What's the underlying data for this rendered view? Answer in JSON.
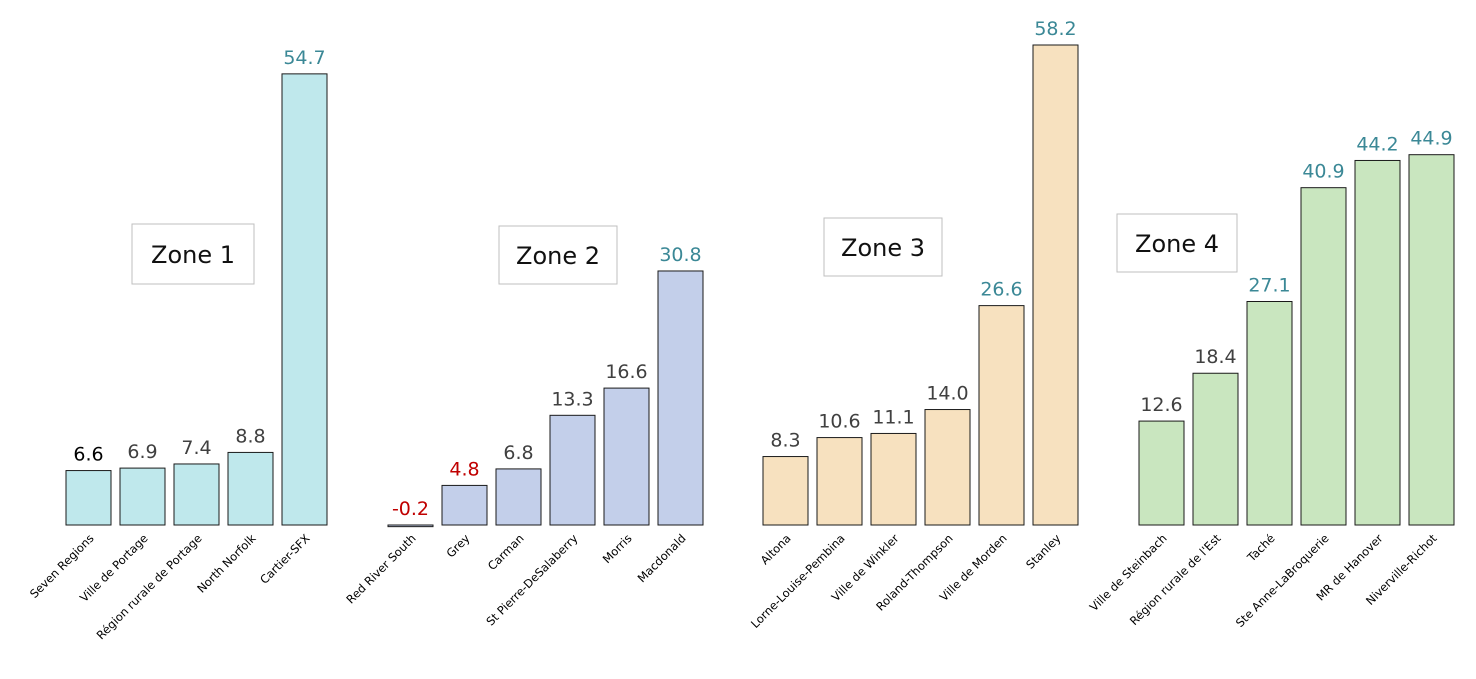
{
  "chart_data": {
    "type": "bar",
    "title": "",
    "xlabel": "",
    "ylabel": "",
    "ylim": [
      -1,
      60
    ],
    "grid": false,
    "legend": "none",
    "colors": {
      "zone1": "#bfe8ec",
      "zone2": "#c3cfea",
      "zone3": "#f7e1bf",
      "zone4": "#c9e6bf",
      "label_default": "#404040",
      "label_first": "#000000",
      "label_high": "#3b8896",
      "label_negative": "#c00000"
    },
    "zones": [
      {
        "name": "Zone 1",
        "bars": [
          {
            "category": "Seven Regions",
            "value": 6.6,
            "label": "6.6",
            "label_style": "first"
          },
          {
            "category": "Ville de Portage",
            "value": 6.9,
            "label": "6.9",
            "label_style": "default"
          },
          {
            "category": "Région rurale de Portage",
            "value": 7.4,
            "label": "7.4",
            "label_style": "default"
          },
          {
            "category": "North Norfolk",
            "value": 8.8,
            "label": "8.8",
            "label_style": "default"
          },
          {
            "category": "Cartier-SFX",
            "value": 54.7,
            "label": "54.7",
            "label_style": "high"
          }
        ]
      },
      {
        "name": "Zone 2",
        "bars": [
          {
            "category": "Red River South",
            "value": -0.2,
            "label": "-0.2",
            "label_style": "negative"
          },
          {
            "category": "Grey",
            "value": 4.8,
            "label": "4.8",
            "label_style": "negative"
          },
          {
            "category": "Carman",
            "value": 6.8,
            "label": "6.8",
            "label_style": "default"
          },
          {
            "category": "St Pierre-DeSalaberry",
            "value": 13.3,
            "label": "13.3",
            "label_style": "default"
          },
          {
            "category": "Morris",
            "value": 16.6,
            "label": "16.6",
            "label_style": "default"
          },
          {
            "category": "Macdonald",
            "value": 30.8,
            "label": "30.8",
            "label_style": "high"
          }
        ]
      },
      {
        "name": "Zone 3",
        "bars": [
          {
            "category": "Altona",
            "value": 8.3,
            "label": "8.3",
            "label_style": "default"
          },
          {
            "category": "Lorne-Louise-Pembina",
            "value": 10.6,
            "label": "10.6",
            "label_style": "default"
          },
          {
            "category": "Ville de Winkler",
            "value": 11.1,
            "label": "11.1",
            "label_style": "default"
          },
          {
            "category": "Roland-Thompson",
            "value": 14.0,
            "label": "14.0",
            "label_style": "default"
          },
          {
            "category": "Ville de Morden",
            "value": 26.6,
            "label": "26.6",
            "label_style": "high"
          },
          {
            "category": "Stanley",
            "value": 58.2,
            "label": "58.2",
            "label_style": "high"
          }
        ]
      },
      {
        "name": "Zone 4",
        "bars": [
          {
            "category": "Ville de Steinbach",
            "value": 12.6,
            "label": "12.6",
            "label_style": "default"
          },
          {
            "category": "Région rurale de l'Est",
            "value": 18.4,
            "label": "18.4",
            "label_style": "default"
          },
          {
            "category": "Taché",
            "value": 27.1,
            "label": "27.1",
            "label_style": "high"
          },
          {
            "category": "Ste Anne-LaBroquerie",
            "value": 40.9,
            "label": "40.9",
            "label_style": "high"
          },
          {
            "category": "MR de Hanover",
            "value": 44.2,
            "label": "44.2",
            "label_style": "high"
          },
          {
            "category": "Niverville-Richot",
            "value": 44.9,
            "label": "44.9",
            "label_style": "high"
          }
        ]
      }
    ]
  }
}
